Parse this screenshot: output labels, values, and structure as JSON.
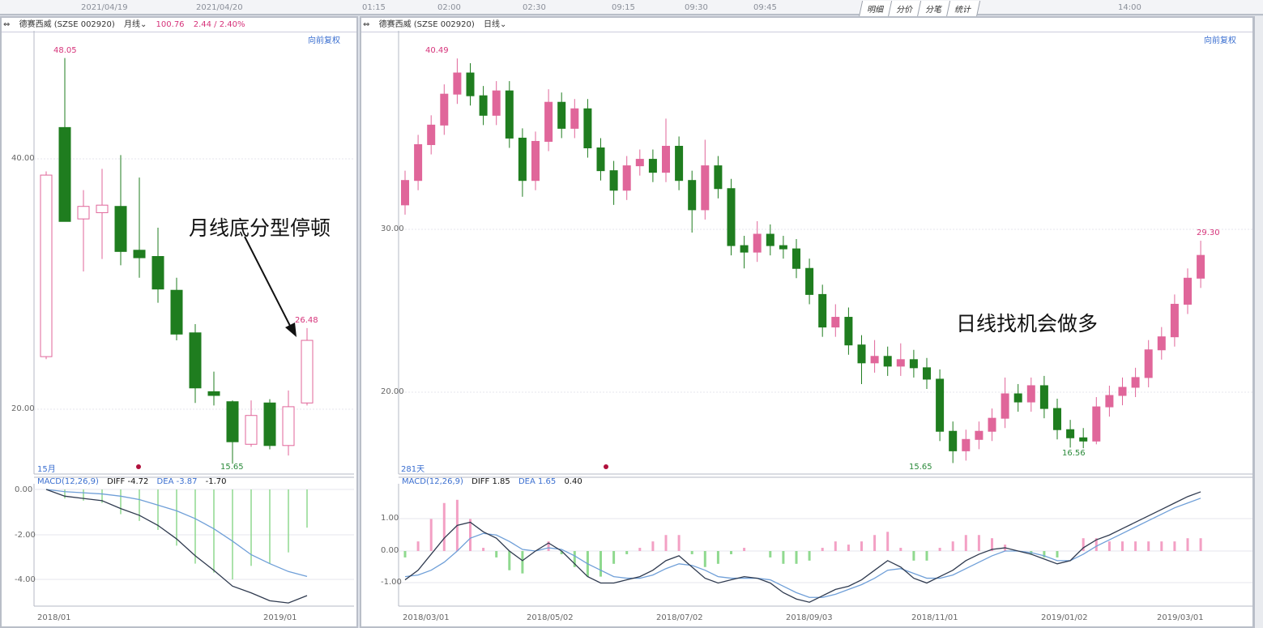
{
  "top_strip": {
    "dates": [
      "2021/04/19",
      "2021/04/20"
    ],
    "times": [
      "01:15",
      "02:00",
      "02:30",
      "09:15",
      "09:30",
      "09:45"
    ],
    "tabs": [
      "明细",
      "分价",
      "分笔",
      "统计"
    ],
    "right_time": "14:00"
  },
  "left_panel": {
    "stock": "德赛西威 (SZSE 002920)",
    "period": "月线",
    "price": "100.76",
    "change": "2.44 / 2.40%",
    "adjust": "向前复权",
    "count_label": "15月",
    "annotation": "月线底分型停顿",
    "macd": {
      "name": "MACD(12,26,9)",
      "diff_label": "DIFF -4.72",
      "dea_label": "DEA -3.87",
      "macd_value": "-1.70"
    }
  },
  "right_panel": {
    "stock": "德赛西威 (SZSE 002920)",
    "period": "日线",
    "adjust": "向前复权",
    "count_label": "281天",
    "annotation": "日线找机会做多",
    "macd": {
      "name": "MACD(12,26,9)",
      "diff_label": "DIFF 1.85",
      "dea_label": "DEA 1.65",
      "macd_value": "0.40"
    }
  },
  "colors": {
    "up": "#e0669a",
    "down": "#1f7d1f",
    "diff": "#2f3a4f",
    "dea": "#6f9fd8",
    "hist_up": "#f3a0c4",
    "hist_down": "#8fd98f"
  },
  "chart_data": [
    {
      "type": "candlestick",
      "title": "德赛西威 月线",
      "yticks": [
        "40.00",
        "20.00"
      ],
      "xticks": [
        "2018/01",
        "2019/01"
      ],
      "ylim": [
        14,
        50
      ],
      "annotations": {
        "high": "48.05",
        "low": "15.65",
        "last_high": "26.48"
      },
      "candles_ohlc": [
        [
          24.2,
          39.0,
          24.0,
          38.7
        ],
        [
          42.5,
          48.05,
          35.0,
          35.0
        ],
        [
          35.2,
          37.5,
          31.0,
          36.2
        ],
        [
          35.7,
          39.2,
          32.0,
          36.3
        ],
        [
          36.2,
          40.3,
          31.5,
          32.6
        ],
        [
          32.7,
          38.5,
          30.5,
          32.1
        ],
        [
          32.2,
          34.5,
          28.5,
          29.6
        ],
        [
          29.5,
          30.5,
          25.5,
          26.0
        ],
        [
          26.1,
          26.8,
          20.5,
          21.7
        ],
        [
          21.4,
          23.0,
          20.3,
          21.1
        ],
        [
          20.6,
          20.7,
          15.65,
          17.4
        ],
        [
          17.2,
          20.7,
          17.0,
          19.5
        ],
        [
          20.5,
          20.8,
          16.8,
          17.1
        ],
        [
          17.1,
          21.5,
          16.3,
          20.2
        ],
        [
          20.5,
          26.48,
          20.3,
          25.5
        ]
      ],
      "macd": {
        "yticks": [
          "0.00",
          "-2.00",
          "-4.00"
        ],
        "diff": [
          0.0,
          -0.3,
          -0.4,
          -0.5,
          -0.85,
          -1.15,
          -1.6,
          -2.2,
          -2.95,
          -3.6,
          -4.3,
          -4.6,
          -4.95,
          -5.05,
          -4.72
        ],
        "dea": [
          0.0,
          -0.1,
          -0.15,
          -0.2,
          -0.3,
          -0.45,
          -0.7,
          -0.95,
          -1.3,
          -1.75,
          -2.3,
          -2.9,
          -3.3,
          -3.65,
          -3.87
        ]
      }
    },
    {
      "type": "candlestick",
      "title": "德赛西威 日线",
      "yticks": [
        "30.00",
        "20.00"
      ],
      "xticks": [
        "2018/03/01",
        "2018/05/02",
        "2018/07/02",
        "2018/09/03",
        "2018/11/01",
        "2019/01/02",
        "2019/03/01"
      ],
      "ylim": [
        15,
        42
      ],
      "annotations": {
        "high": "40.49",
        "low": "15.65",
        "second_low": "16.56",
        "last_high": "29.30"
      },
      "candles_ohlc": [
        [
          31.5,
          33.6,
          30.9,
          33.0
        ],
        [
          33.0,
          35.8,
          32.4,
          35.2
        ],
        [
          35.2,
          37.0,
          34.6,
          36.4
        ],
        [
          36.4,
          38.9,
          35.8,
          38.3
        ],
        [
          38.3,
          40.49,
          37.7,
          39.6
        ],
        [
          39.6,
          40.2,
          37.6,
          38.2
        ],
        [
          38.2,
          38.8,
          36.4,
          37.0
        ],
        [
          37.0,
          39.1,
          36.4,
          38.5
        ],
        [
          38.5,
          39.1,
          35.0,
          35.6
        ],
        [
          35.6,
          36.2,
          32.0,
          33.0
        ],
        [
          33.0,
          36.0,
          32.4,
          35.4
        ],
        [
          35.4,
          38.6,
          34.8,
          37.8
        ],
        [
          37.8,
          38.4,
          35.6,
          36.2
        ],
        [
          36.2,
          38.0,
          35.6,
          37.4
        ],
        [
          37.4,
          38.0,
          34.4,
          35.0
        ],
        [
          35.0,
          35.6,
          33.0,
          33.6
        ],
        [
          33.6,
          34.2,
          31.5,
          32.4
        ],
        [
          32.4,
          34.5,
          31.8,
          33.9
        ],
        [
          33.9,
          34.9,
          33.3,
          34.3
        ],
        [
          34.3,
          34.9,
          32.9,
          33.5
        ],
        [
          33.5,
          36.8,
          32.9,
          35.1
        ],
        [
          35.1,
          35.7,
          32.4,
          33.0
        ],
        [
          33.0,
          33.6,
          29.8,
          31.2
        ],
        [
          31.2,
          35.5,
          30.6,
          33.9
        ],
        [
          33.9,
          34.5,
          31.9,
          32.5
        ],
        [
          32.5,
          33.1,
          28.4,
          29.0
        ],
        [
          29.0,
          29.6,
          27.6,
          28.6
        ],
        [
          28.6,
          30.5,
          28.0,
          29.7
        ],
        [
          29.7,
          30.3,
          28.4,
          29.0
        ],
        [
          29.0,
          29.6,
          28.2,
          28.8
        ],
        [
          28.8,
          29.4,
          27.0,
          27.6
        ],
        [
          27.6,
          28.2,
          25.4,
          26.0
        ],
        [
          26.0,
          26.6,
          23.4,
          24.0
        ],
        [
          24.0,
          25.4,
          23.4,
          24.6
        ],
        [
          24.6,
          25.2,
          22.3,
          22.9
        ],
        [
          22.9,
          23.5,
          20.5,
          21.8
        ],
        [
          21.8,
          23.2,
          21.2,
          22.2
        ],
        [
          22.2,
          22.8,
          21.0,
          21.6
        ],
        [
          21.6,
          23.0,
          21.0,
          22.0
        ],
        [
          22.0,
          22.6,
          20.9,
          21.5
        ],
        [
          21.5,
          22.1,
          20.2,
          20.8
        ],
        [
          20.8,
          21.4,
          17.0,
          17.6
        ],
        [
          17.6,
          18.2,
          15.65,
          16.4
        ],
        [
          16.4,
          17.7,
          15.8,
          17.1
        ],
        [
          17.1,
          18.2,
          16.5,
          17.6
        ],
        [
          17.6,
          19.0,
          17.0,
          18.4
        ],
        [
          18.4,
          20.9,
          17.8,
          19.9
        ],
        [
          19.9,
          20.5,
          18.8,
          19.4
        ],
        [
          19.4,
          20.9,
          18.8,
          20.4
        ],
        [
          20.4,
          21.0,
          18.4,
          19.0
        ],
        [
          19.0,
          19.6,
          17.1,
          17.7
        ],
        [
          17.7,
          18.3,
          16.6,
          17.2
        ],
        [
          17.2,
          17.8,
          16.56,
          17.0
        ],
        [
          17.0,
          19.7,
          16.8,
          19.1
        ],
        [
          19.1,
          20.4,
          18.5,
          19.8
        ],
        [
          19.8,
          20.9,
          19.2,
          20.3
        ],
        [
          20.3,
          21.5,
          19.7,
          20.9
        ],
        [
          20.9,
          23.2,
          20.3,
          22.6
        ],
        [
          22.6,
          24.0,
          22.0,
          23.4
        ],
        [
          23.4,
          26.0,
          22.8,
          25.4
        ],
        [
          25.4,
          27.6,
          24.8,
          27.0
        ],
        [
          27.0,
          29.3,
          26.4,
          28.4
        ]
      ],
      "macd": {
        "yticks": [
          "1.00",
          "0.00",
          "-1.00"
        ],
        "diff": [
          -0.9,
          -0.6,
          -0.1,
          0.4,
          0.8,
          0.9,
          0.6,
          0.4,
          0.0,
          -0.3,
          0.0,
          0.25,
          0.0,
          -0.4,
          -0.8,
          -1.0,
          -1.0,
          -0.9,
          -0.8,
          -0.6,
          -0.3,
          -0.15,
          -0.5,
          -0.85,
          -1.0,
          -0.9,
          -0.8,
          -0.85,
          -1.0,
          -1.3,
          -1.5,
          -1.6,
          -1.4,
          -1.2,
          -1.1,
          -0.9,
          -0.6,
          -0.3,
          -0.5,
          -0.85,
          -1.0,
          -0.8,
          -0.6,
          -0.3,
          -0.1,
          0.05,
          0.1,
          0.0,
          -0.1,
          -0.25,
          -0.4,
          -0.3,
          0.1,
          0.35,
          0.5,
          0.7,
          0.9,
          1.1,
          1.3,
          1.5,
          1.7,
          1.85
        ],
        "dea": [
          -0.8,
          -0.75,
          -0.6,
          -0.35,
          0.0,
          0.4,
          0.55,
          0.5,
          0.3,
          0.05,
          0.0,
          0.1,
          0.05,
          -0.15,
          -0.4,
          -0.6,
          -0.8,
          -0.85,
          -0.85,
          -0.75,
          -0.55,
          -0.4,
          -0.45,
          -0.6,
          -0.8,
          -0.85,
          -0.85,
          -0.85,
          -0.9,
          -1.1,
          -1.3,
          -1.45,
          -1.45,
          -1.35,
          -1.2,
          -1.05,
          -0.85,
          -0.6,
          -0.55,
          -0.7,
          -0.85,
          -0.85,
          -0.75,
          -0.55,
          -0.35,
          -0.15,
          0.0,
          0.0,
          -0.05,
          -0.15,
          -0.3,
          -0.3,
          -0.1,
          0.15,
          0.35,
          0.55,
          0.75,
          0.95,
          1.15,
          1.35,
          1.5,
          1.65
        ]
      }
    }
  ]
}
